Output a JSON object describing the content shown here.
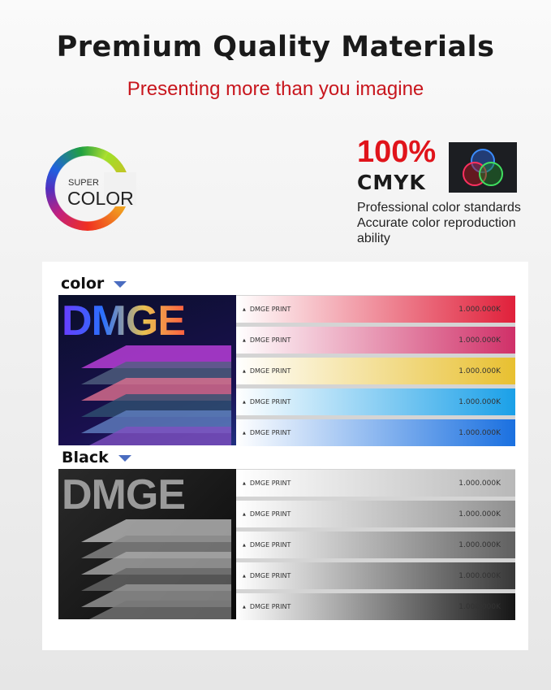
{
  "title": "Premium Quality Materials",
  "subtitle": "Presenting more than you imagine",
  "logo": {
    "super": "SUPER",
    "color": "COLOR"
  },
  "cmyk": {
    "percent": "100%",
    "label": "CMYK",
    "lines": [
      "Professional color standards",
      "Accurate color reproduction",
      "ability"
    ]
  },
  "sections": [
    {
      "label": "color",
      "brand": "DMGE",
      "rows": [
        {
          "name": "DMGE PRINT",
          "value": "1.000.000K",
          "color": "#e0203a"
        },
        {
          "name": "DMGE PRINT",
          "value": "1.000.000K",
          "color": "#d03068"
        },
        {
          "name": "DMGE PRINT",
          "value": "1.000.000K",
          "color": "#e8c030"
        },
        {
          "name": "DMGE PRINT",
          "value": "1.000.000K",
          "color": "#1aa0e8"
        },
        {
          "name": "DMGE PRINT",
          "value": "1.000.000K",
          "color": "#1a70e0"
        }
      ]
    },
    {
      "label": "Black",
      "brand": "DMGE",
      "rows": [
        {
          "name": "DMGE PRINT",
          "value": "1.000.000K",
          "color": "#b8b8b8"
        },
        {
          "name": "DMGE PRINT",
          "value": "1.000.000K",
          "color": "#909090"
        },
        {
          "name": "DMGE PRINT",
          "value": "1.000.000K",
          "color": "#606060"
        },
        {
          "name": "DMGE PRINT",
          "value": "1.000.000K",
          "color": "#383838"
        },
        {
          "name": "DMGE PRINT",
          "value": "1.000.000K",
          "color": "#151515"
        }
      ]
    }
  ]
}
